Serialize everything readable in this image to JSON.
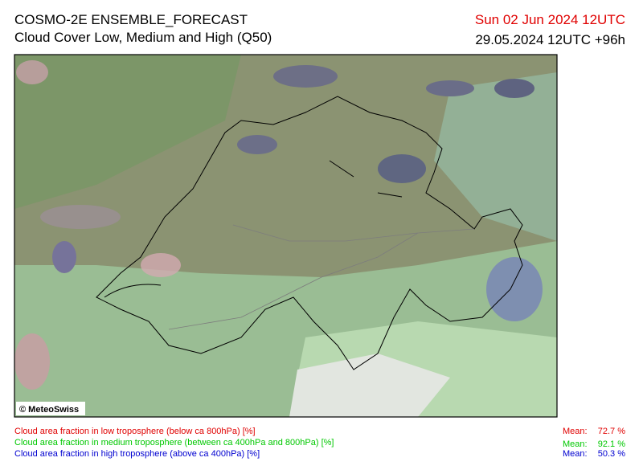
{
  "header": {
    "title": "COSMO-2E ENSEMBLE_FORECAST",
    "subtitle": "Cloud Cover Low, Medium and High (Q50)",
    "valid_time": "Sun 02 Jun 2024 12UTC",
    "run_time": "29.05.2024 12UTC +96h"
  },
  "map": {
    "credit": "© MeteoSwiss"
  },
  "legend": [
    {
      "label": "Cloud area fraction in low troposphere (below ca 800hPa) [%]",
      "mean_label": "Mean:",
      "mean": "72.7 %"
    },
    {
      "label": "Cloud area fraction in medium troposphere (between ca 400hPa and 800hPa) [%]",
      "mean_label": "Mean:",
      "mean": "92.1 %"
    },
    {
      "label": "Cloud area fraction in high troposphere (above ca 400hPa) [%]",
      "mean_label": "Mean:",
      "mean": "50.3 %"
    }
  ]
}
